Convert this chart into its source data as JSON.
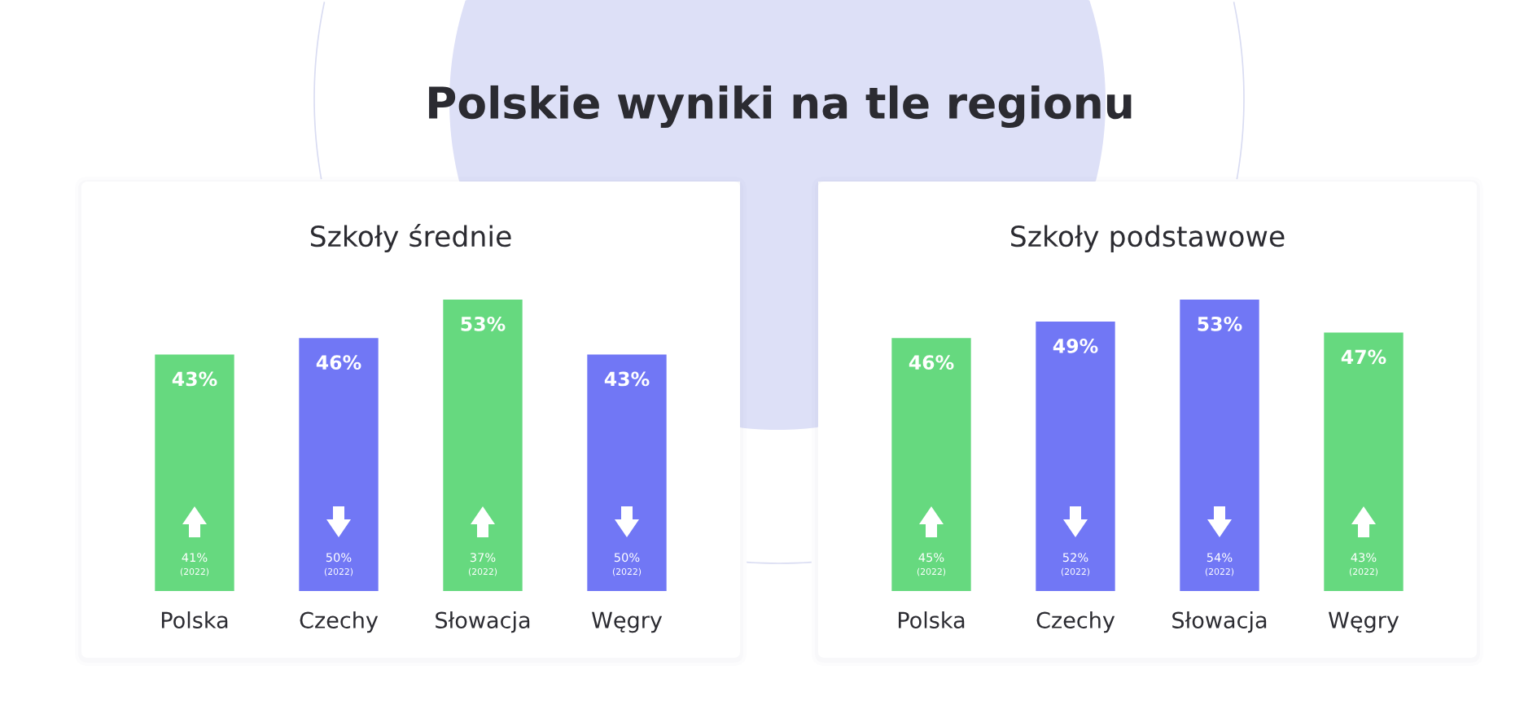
{
  "chart_data": [
    {
      "type": "bar",
      "title": "Polskie wyniki na tle regionu",
      "subtitle": "Szkoły średnie",
      "categories": [
        "Polska",
        "Czechy",
        "Słowacja",
        "Węgry"
      ],
      "values": [
        43,
        46,
        53,
        43
      ],
      "colors": [
        "#66d97f",
        "#7177f5",
        "#66d97f",
        "#7177f5"
      ],
      "value_labels": [
        "43%",
        "46%",
        "53%",
        "43%"
      ],
      "tick_labels": "x",
      "annotations": [
        "41%",
        "(2022)",
        "50%",
        "(2022)",
        "37%",
        "(2022)",
        "50%",
        "(2022)"
      ]
    },
    {
      "type": "bar",
      "subtitle": "Szkoły podstawowe",
      "categories": [
        "Polska",
        "Czechy",
        "Słowacja",
        "Węgry"
      ],
      "values": [
        46,
        49,
        53,
        47
      ],
      "colors": [
        "#66d97f",
        "#7177f5",
        "#7177f5",
        "#66d97f"
      ],
      "value_labels": [
        "46%",
        "49%",
        "53%",
        "47%"
      ],
      "tick_labels": "x",
      "annotations": [
        "45%",
        "(2022)",
        "52%",
        "(2022)",
        "54%",
        "(2022)",
        "43%",
        "(2022)"
      ]
    }
  ]
}
